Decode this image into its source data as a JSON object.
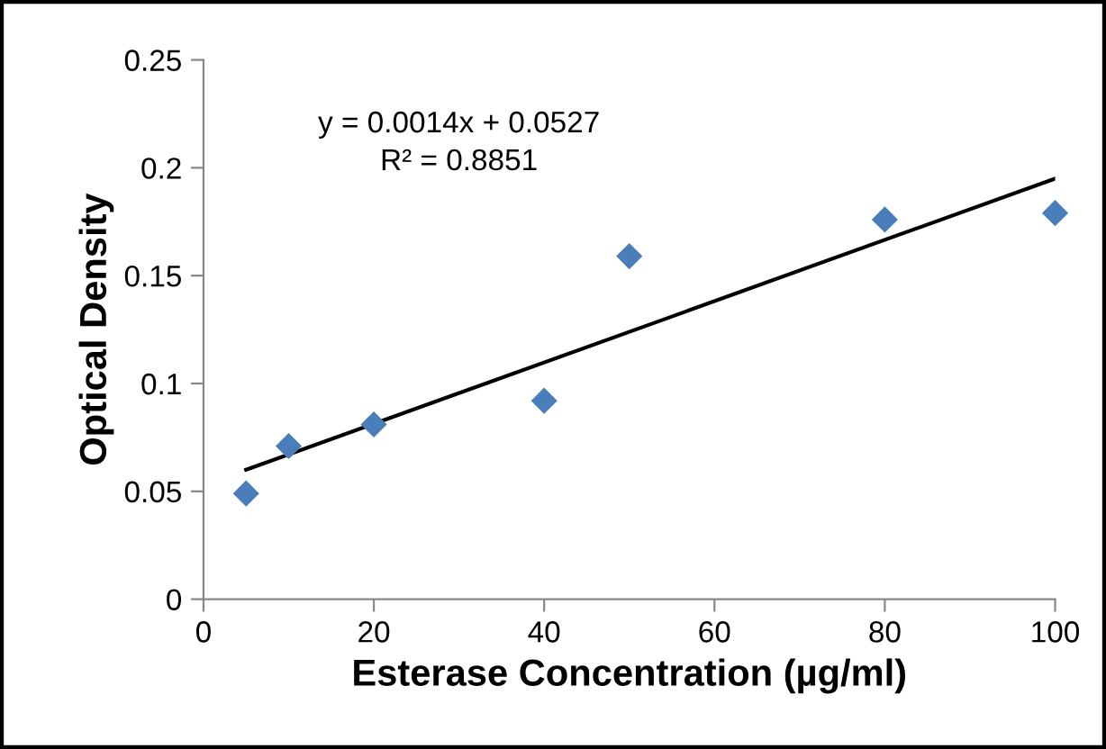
{
  "chart_data": {
    "type": "scatter",
    "xlabel": "Esterase Concentration (µg/ml)",
    "ylabel": "Optical Density",
    "annotations": [
      "y = 0.0014x + 0.0527",
      "R² = 0.8851"
    ],
    "series": [
      {
        "color": "#4a7ebb",
        "marker": "diamond",
        "x": [
          5,
          10,
          20,
          40,
          50,
          80,
          100
        ],
        "values": [
          0.049,
          0.071,
          0.081,
          0.092,
          0.159,
          0.176,
          0.179
        ]
      },
      {
        "type": "line",
        "color": "#000000",
        "marker": "none",
        "line_style": "solid",
        "x": [
          5,
          100
        ],
        "values": [
          0.06,
          0.195
        ]
      }
    ],
    "xlim": [
      0,
      100
    ],
    "xticks": [
      0,
      20,
      40,
      60,
      80,
      100
    ],
    "ylim": [
      0,
      0.25
    ],
    "yticks": [
      0,
      0.05,
      0.1,
      0.15,
      0.2,
      0.25
    ],
    "grid": false,
    "legend": false
  }
}
